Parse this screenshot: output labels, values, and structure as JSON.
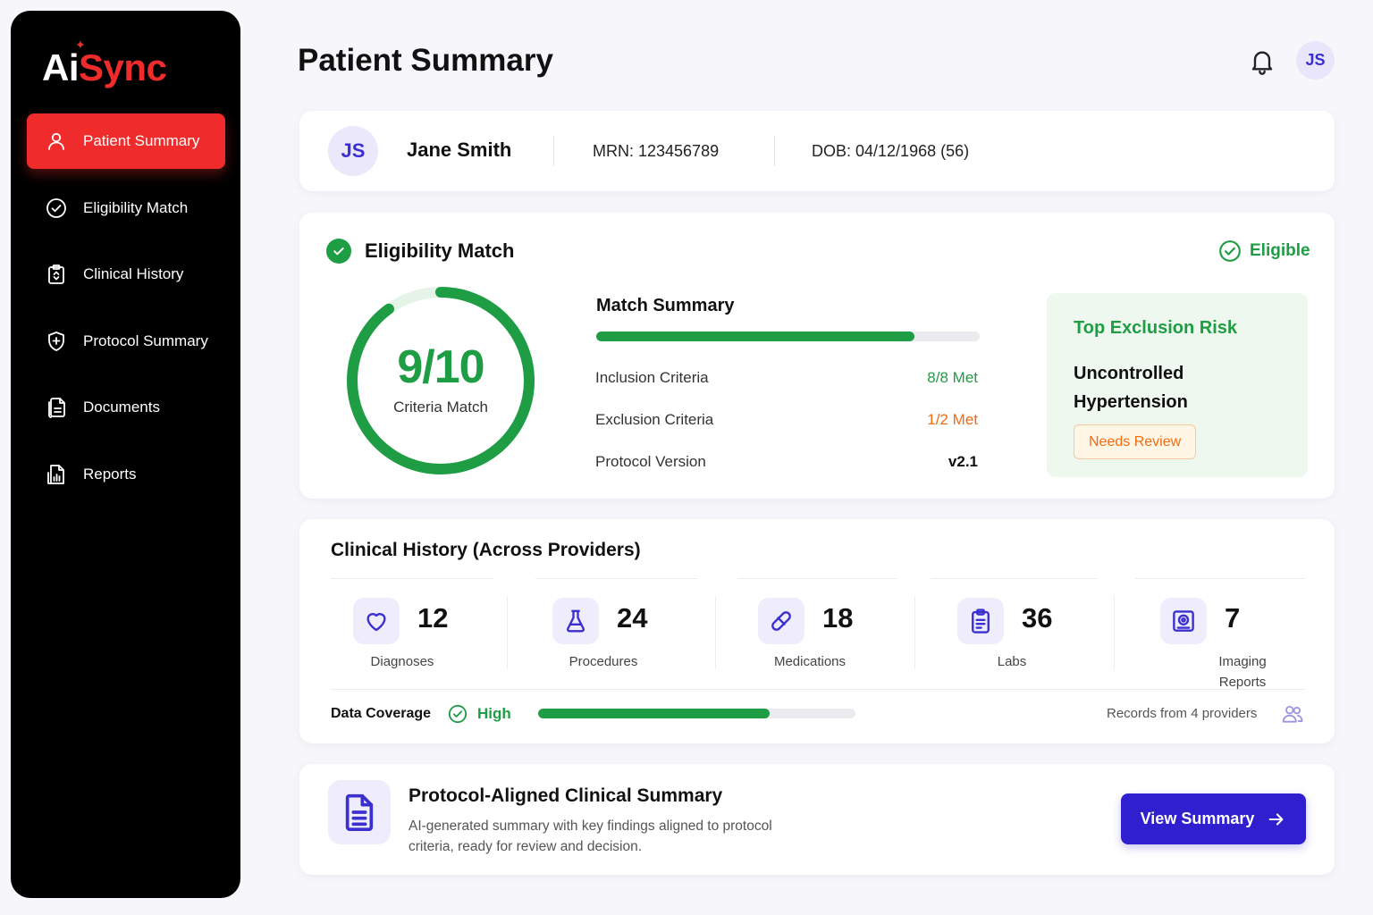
{
  "app": {
    "logo_prefix": "Ai",
    "logo_suffix": "Sync"
  },
  "sidebar": {
    "items": [
      {
        "label": "Patient Summary",
        "icon": "user-icon",
        "active": true
      },
      {
        "label": "Eligibility Match",
        "icon": "check-circle-icon",
        "active": false
      },
      {
        "label": "Clinical History",
        "icon": "clipboard-icon",
        "active": false
      },
      {
        "label": "Protocol Summary",
        "icon": "shield-plus-icon",
        "active": false
      },
      {
        "label": "Documents",
        "icon": "documents-icon",
        "active": false
      },
      {
        "label": "Reports",
        "icon": "reports-icon",
        "active": false
      }
    ]
  },
  "header": {
    "title": "Patient Summary",
    "user_initials": "JS"
  },
  "patient": {
    "initials": "JS",
    "name": "Jane Smith",
    "mrn": "MRN: 123456789",
    "dob": "DOB: 04/12/1968 (56)"
  },
  "eligibility": {
    "title": "Eligibility Match",
    "status": "Eligible",
    "score": "9/10",
    "score_fraction": 0.9,
    "score_label": "Criteria Match",
    "summary_title": "Match Summary",
    "summary_progress": 0.83,
    "rows": [
      {
        "label": "Inclusion Criteria",
        "value": "8/8 Met"
      },
      {
        "label": "Exclusion Criteria",
        "value": "1/2 Met"
      },
      {
        "label": "Protocol Version",
        "value": "v2.1"
      }
    ],
    "risk": {
      "title": "Top Exclusion Risk",
      "item": "Uncontrolled Hypertension",
      "badge": "Needs Review"
    }
  },
  "history": {
    "title": "Clinical History (Across Providers)",
    "stats": [
      {
        "value": "12",
        "label": "Diagnoses",
        "icon": "heart-icon"
      },
      {
        "value": "24",
        "label": "Procedures",
        "icon": "flask-icon"
      },
      {
        "value": "18",
        "label": "Medications",
        "icon": "pill-icon"
      },
      {
        "value": "36",
        "label": "Labs",
        "icon": "lab-clipboard-icon"
      },
      {
        "value": "7",
        "label": "Imaging Reports",
        "icon": "imaging-icon"
      }
    ],
    "coverage": {
      "label": "Data Coverage",
      "level": "High",
      "fraction": 0.73,
      "records": "Records from 4 providers"
    }
  },
  "protocol": {
    "title": "Protocol-Aligned Clinical Summary",
    "description": "AI-generated summary with key findings aligned to protocol criteria, ready for review and decision.",
    "button_label": "View Summary"
  },
  "colors": {
    "accent_red": "#ef2b2b",
    "success_green": "#1f9d45",
    "warning_orange": "#f26b11",
    "primary_indigo": "#2f1fcf"
  }
}
